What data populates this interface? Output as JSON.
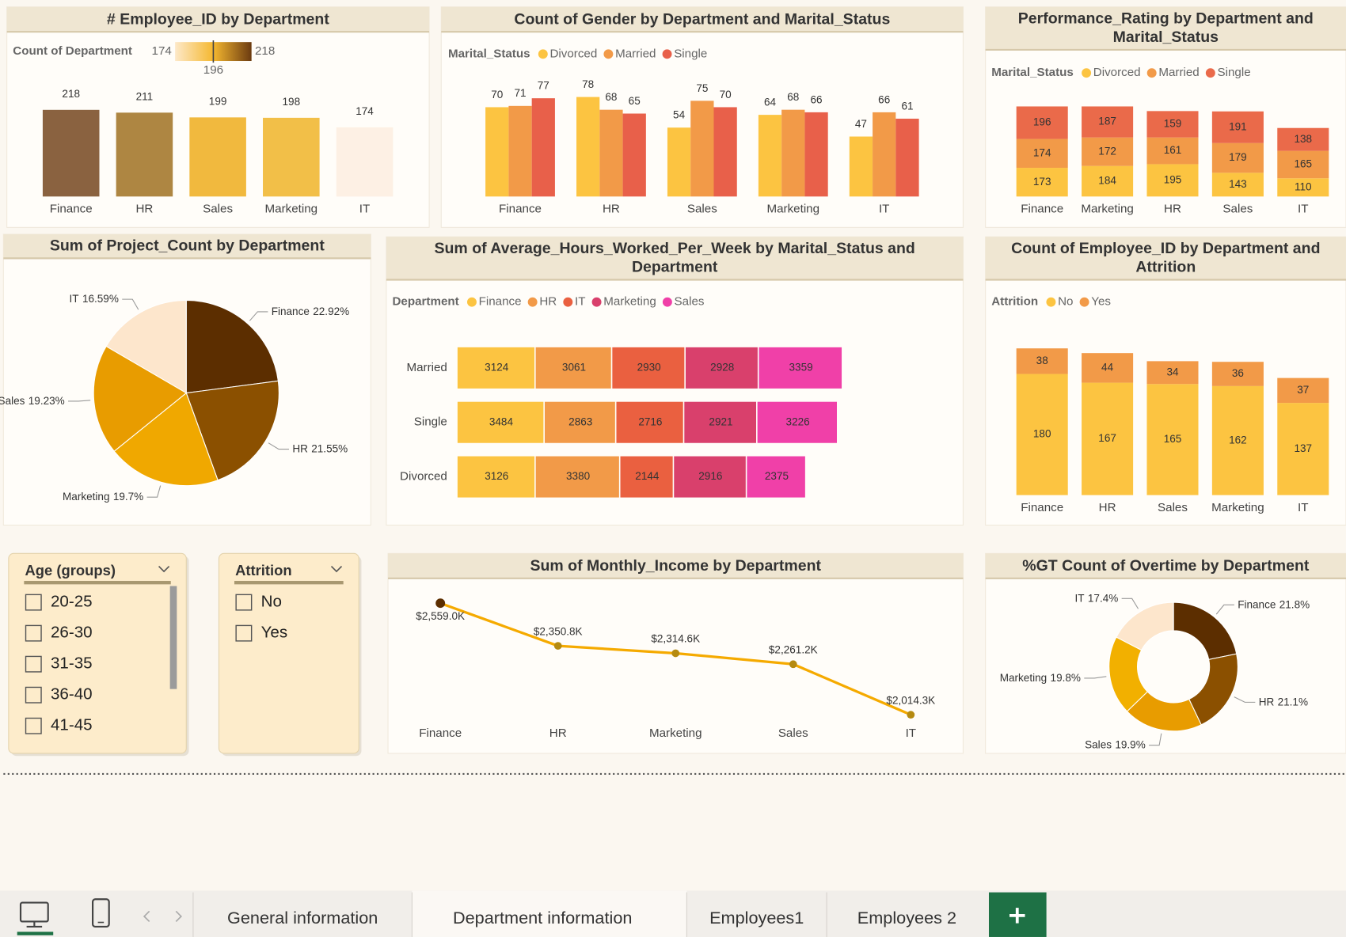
{
  "chart_data": [
    {
      "type": "bar",
      "title": "# Employee_ID by Department",
      "categories": [
        "Finance",
        "HR",
        "Sales",
        "Marketing",
        "IT"
      ],
      "values": [
        218,
        211,
        199,
        198,
        174
      ],
      "colors": [
        "#8a6240",
        "#ae8642",
        "#f1b93e",
        "#f2bf48",
        "#fdf0e4"
      ],
      "legend_title": "Count of Department",
      "color_scale": {
        "min": 174,
        "mid": 196,
        "max": 218
      }
    },
    {
      "type": "bar",
      "stacked": false,
      "title": "Count of Gender by Department and Marital_Status",
      "legend_title": "Marital_Status",
      "categories": [
        "Finance",
        "HR",
        "Sales",
        "Marketing",
        "IT"
      ],
      "series": [
        {
          "name": "Divorced",
          "color": "#fcc441",
          "values": [
            70,
            78,
            54,
            64,
            47
          ]
        },
        {
          "name": "Married",
          "color": "#f29a48",
          "values": [
            71,
            68,
            75,
            68,
            66
          ]
        },
        {
          "name": "Single",
          "color": "#e8604a",
          "values": [
            77,
            65,
            70,
            66,
            61
          ]
        }
      ]
    },
    {
      "type": "bar",
      "stacked": true,
      "title": "Performance_Rating by Department and Marital_Status",
      "legend_title": "Marital_Status",
      "categories": [
        "Finance",
        "Marketing",
        "HR",
        "Sales",
        "IT"
      ],
      "series": [
        {
          "name": "Divorced",
          "color": "#fcc441",
          "values": [
            173,
            184,
            195,
            143,
            110
          ]
        },
        {
          "name": "Married",
          "color": "#f29a48",
          "values": [
            174,
            172,
            161,
            179,
            165
          ]
        },
        {
          "name": "Single",
          "color": "#ea6a4a",
          "values": [
            196,
            187,
            159,
            191,
            138
          ]
        }
      ]
    },
    {
      "type": "pie",
      "title": "Sum of Project_Count by Department",
      "categories": [
        "Finance",
        "HR",
        "Marketing",
        "Sales",
        "IT"
      ],
      "values": [
        22.92,
        21.55,
        19.7,
        19.23,
        16.59
      ],
      "value_labels": [
        "22.92%",
        "21.55%",
        "19.7%",
        "19.23%",
        "16.59%"
      ],
      "colors": [
        "#5c2e00",
        "#8b5000",
        "#f0a800",
        "#e89c00",
        "#fde6cc"
      ]
    },
    {
      "type": "barh",
      "stacked": true,
      "title": "Sum of Average_Hours_Worked_Per_Week by Marital_Status and Department",
      "legend_title": "Department",
      "categories": [
        "Married",
        "Single",
        "Divorced"
      ],
      "series": [
        {
          "name": "Finance",
          "color": "#fcc441",
          "values": [
            3124,
            3484,
            3126
          ]
        },
        {
          "name": "HR",
          "color": "#f29a48",
          "values": [
            3061,
            2863,
            3380
          ]
        },
        {
          "name": "IT",
          "color": "#ea6040",
          "values": [
            2930,
            2716,
            2144
          ]
        },
        {
          "name": "Marketing",
          "color": "#d9406c",
          "values": [
            2928,
            2921,
            2916
          ]
        },
        {
          "name": "Sales",
          "color": "#f040a8",
          "values": [
            3359,
            3226,
            2375
          ]
        }
      ]
    },
    {
      "type": "bar",
      "stacked": true,
      "title": "Count of Employee_ID by Department and Attrition",
      "legend_title": "Attrition",
      "categories": [
        "Finance",
        "HR",
        "Sales",
        "Marketing",
        "IT"
      ],
      "series": [
        {
          "name": "No",
          "color": "#fcc441",
          "values": [
            180,
            167,
            165,
            162,
            137
          ]
        },
        {
          "name": "Yes",
          "color": "#f29a48",
          "values": [
            38,
            44,
            34,
            36,
            37
          ]
        }
      ]
    },
    {
      "type": "line",
      "title": "Sum of Monthly_Income by Department",
      "categories": [
        "Finance",
        "HR",
        "Marketing",
        "Sales",
        "IT"
      ],
      "values": [
        2559000,
        2350800,
        2314600,
        2261200,
        2014300
      ],
      "value_labels": [
        "$2,559.0K",
        "$2,350.8K",
        "$2,314.6K",
        "$2,261.2K",
        "$2,014.3K"
      ],
      "color": "#f5aa00"
    },
    {
      "type": "donut",
      "title": "%GT Count of Overtime by Department",
      "categories": [
        "Finance",
        "HR",
        "Sales",
        "Marketing",
        "IT"
      ],
      "values": [
        21.8,
        21.1,
        19.9,
        19.8,
        17.4
      ],
      "value_labels": [
        "21.8%",
        "21.1%",
        "19.9%",
        "19.8%",
        "17.4%"
      ],
      "colors": [
        "#5c2e00",
        "#8b5000",
        "#e89c00",
        "#f2b000",
        "#fde6cc"
      ]
    }
  ],
  "slicers": [
    {
      "title": "Age (groups)",
      "items": [
        "20-25",
        "26-30",
        "31-35",
        "36-40",
        "41-45"
      ]
    },
    {
      "title": "Attrition",
      "items": [
        "No",
        "Yes"
      ]
    }
  ],
  "tabs": [
    "General information",
    "Department information",
    "Employees1",
    "Employees 2"
  ]
}
